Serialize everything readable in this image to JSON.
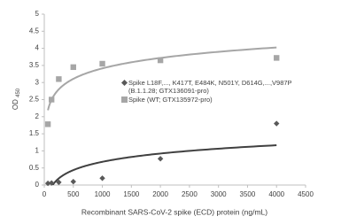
{
  "chart_data": {
    "type": "scatter",
    "trendline": "log",
    "x_label": "Recombinant SARS-CoV-2 spike (ECD) protein (ng/mL)",
    "y_label": "OD",
    "y_label_sub": "450",
    "xlim": [
      0,
      4500
    ],
    "xticks": [
      0,
      500,
      1000,
      1500,
      2000,
      2500,
      3000,
      3500,
      4000,
      4500
    ],
    "ylim": [
      0,
      5
    ],
    "yticks": [
      0,
      0.5,
      1,
      1.5,
      2,
      2.5,
      3,
      3.5,
      4,
      4.5,
      5
    ],
    "series": [
      {
        "name": "Spike L18F,..., K417T, E484K, N501Y, D614G,...,V987P (B.1.1.28; GTX136091-pro)",
        "color": "#595959",
        "marker": "diamond",
        "x": [
          62.5,
          125,
          250,
          500,
          1000,
          2000,
          4000
        ],
        "values": [
          0.05,
          0.06,
          0.08,
          0.1,
          0.2,
          0.77,
          1.8
        ]
      },
      {
        "name": "Spike (WT; GTX135972-pro)",
        "color": "#a6a6a6",
        "marker": "square",
        "x": [
          62.5,
          125,
          250,
          500,
          1000,
          2000,
          4000
        ],
        "values": [
          1.78,
          2.5,
          3.1,
          3.45,
          3.55,
          3.65,
          3.72
        ]
      }
    ]
  }
}
